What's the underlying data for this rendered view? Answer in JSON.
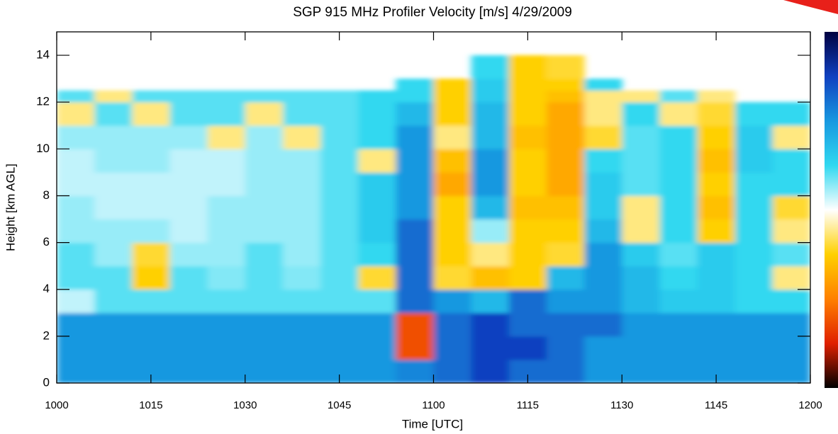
{
  "chart_data": {
    "type": "heatmap",
    "title": "SGP 915 MHz Profiler Velocity [m/s]   4/29/2009",
    "x_label": "Time [UTC]",
    "y_label": "Height [km AGL]",
    "xlim": [
      600,
      720
    ],
    "ylim": [
      0,
      15
    ],
    "xticks": [
      {
        "value": 600,
        "label": "1000"
      },
      {
        "value": 615,
        "label": "1015"
      },
      {
        "value": 630,
        "label": "1030"
      },
      {
        "value": 645,
        "label": "1045"
      },
      {
        "value": 660,
        "label": "1100"
      },
      {
        "value": 675,
        "label": "1115"
      },
      {
        "value": 690,
        "label": "1130"
      },
      {
        "value": 705,
        "label": "1145"
      },
      {
        "value": 720,
        "label": "1200"
      }
    ],
    "yticks": [
      0,
      2,
      4,
      6,
      8,
      10,
      12,
      14
    ],
    "x_edges": [
      600,
      606,
      612,
      618,
      624,
      630,
      636,
      642,
      648,
      654,
      660,
      666,
      672,
      678,
      684,
      690,
      696,
      702,
      708,
      714,
      720
    ],
    "y_edges": [
      0,
      1,
      2,
      3,
      4,
      5,
      6,
      7,
      8,
      9,
      10,
      11,
      12,
      12.5,
      13,
      14
    ],
    "colorscale": [
      [
        -4,
        "#000000"
      ],
      [
        -3,
        "#e02000"
      ],
      [
        -2,
        "#ff8000"
      ],
      [
        -1,
        "#ffd000"
      ],
      [
        0,
        "#ffffff"
      ],
      [
        1,
        "#30d8f0"
      ],
      [
        2,
        "#1898e0"
      ],
      [
        3,
        "#1040c0"
      ],
      [
        4,
        "#000040"
      ]
    ],
    "z": [
      [
        2,
        2,
        2,
        2,
        2,
        2,
        2,
        2,
        2,
        2.2,
        2.5,
        3,
        2.5,
        2.5,
        2,
        2,
        2,
        2,
        2,
        2
      ],
      [
        2,
        2,
        2,
        2,
        2,
        2,
        2,
        2,
        2,
        -2.5,
        2.5,
        3,
        3,
        2.5,
        2,
        2,
        2,
        2,
        2,
        2
      ],
      [
        2,
        2,
        2,
        2,
        2,
        2,
        2,
        2,
        2,
        -2.5,
        2.5,
        3,
        2.5,
        2.5,
        2.5,
        2,
        2,
        2,
        2,
        2
      ],
      [
        0.3,
        0.8,
        0.8,
        0.8,
        0.8,
        0.8,
        0.8,
        0.8,
        0.8,
        2.5,
        2,
        1.5,
        2.5,
        2,
        2,
        1.5,
        1.2,
        1.2,
        1,
        1
      ],
      [
        0.8,
        0.8,
        -1,
        0.8,
        0.6,
        0.8,
        0.6,
        0.8,
        -0.8,
        2.5,
        -0.8,
        -1.2,
        -1,
        1.5,
        2,
        1.5,
        1,
        1.2,
        1,
        -0.5
      ],
      [
        0.8,
        0.5,
        -0.8,
        0.5,
        0.5,
        0.8,
        0.5,
        0.8,
        1,
        2.5,
        -1,
        -0.5,
        -1,
        -0.8,
        2,
        1.2,
        0.8,
        1.2,
        1,
        0.8
      ],
      [
        0.5,
        0.5,
        0.5,
        0.3,
        0.5,
        0.5,
        0.5,
        0.8,
        1.2,
        2.5,
        -1,
        0.5,
        -1,
        -1,
        1.5,
        -0.5,
        1,
        -1,
        1,
        -0.5
      ],
      [
        0.5,
        0.3,
        0.3,
        0.3,
        0.5,
        0.5,
        0.5,
        0.8,
        1.2,
        2,
        -1,
        1.5,
        -1.2,
        -1.2,
        1.2,
        -0.5,
        1,
        -1.2,
        1,
        -0.8
      ],
      [
        0.3,
        0.3,
        0.3,
        0.3,
        0.3,
        0.5,
        0.5,
        0.8,
        1.2,
        2,
        -1.5,
        2,
        -1,
        -1.5,
        1.2,
        0.8,
        1,
        -1,
        1,
        1
      ],
      [
        0.3,
        0.5,
        0.5,
        0.3,
        0.3,
        0.5,
        0.5,
        0.8,
        -0.5,
        2,
        -1.2,
        2,
        -1,
        -1.5,
        1,
        0.8,
        1,
        -1.2,
        1.2,
        1
      ],
      [
        0.5,
        0.5,
        0.5,
        0.5,
        -0.5,
        0.5,
        -0.5,
        0.8,
        1,
        2,
        -0.5,
        1.5,
        -1.2,
        -1.5,
        -0.8,
        0.8,
        1,
        -1,
        1.2,
        -0.5
      ],
      [
        -0.5,
        0.8,
        -0.5,
        0.8,
        0.8,
        -0.5,
        0.8,
        0.8,
        1,
        1.5,
        -1,
        1.5,
        -1,
        -1.5,
        -0.5,
        1,
        -0.5,
        -0.8,
        1,
        1
      ],
      [
        0.8,
        -0.5,
        0.8,
        0.8,
        0.8,
        0.8,
        0.8,
        0.8,
        1,
        1,
        -1,
        1.2,
        -1,
        -1.2,
        -0.5,
        -0.5,
        0.8,
        -0.5,
        null,
        null
      ],
      [
        null,
        null,
        null,
        null,
        null,
        null,
        null,
        null,
        null,
        1,
        -1,
        1.2,
        -1,
        -1,
        1,
        null,
        null,
        null,
        null,
        null
      ],
      [
        null,
        null,
        null,
        null,
        null,
        null,
        null,
        null,
        null,
        null,
        null,
        1,
        -1,
        -0.8,
        null,
        null,
        null,
        null,
        null,
        null
      ]
    ]
  }
}
